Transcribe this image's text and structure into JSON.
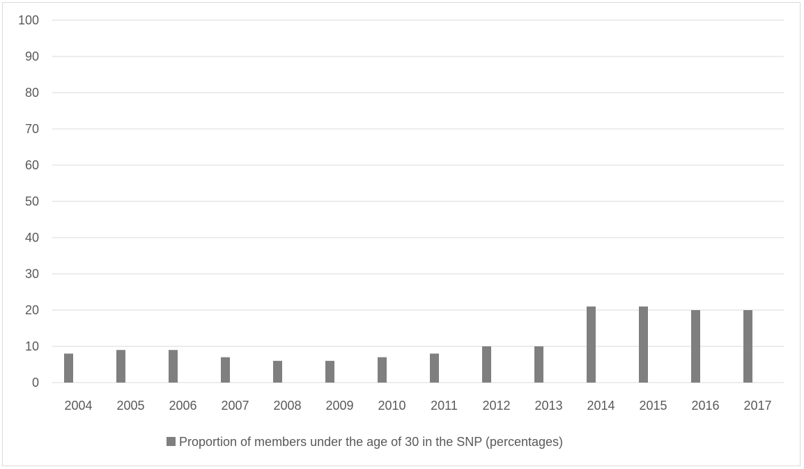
{
  "chart_data": {
    "type": "bar",
    "categories": [
      "2004",
      "2005",
      "2006",
      "2007",
      "2008",
      "2009",
      "2010",
      "2011",
      "2012",
      "2013",
      "2014",
      "2015",
      "2016",
      "2017"
    ],
    "series": [
      {
        "name": "Proportion of members under the age of 30 in the SNP (percentages)",
        "values": [
          8,
          9,
          9,
          7,
          6,
          6,
          7,
          8,
          10,
          10,
          21,
          21,
          20,
          20
        ],
        "color": "#7f7f7f"
      }
    ],
    "yticks": [
      "0",
      "10",
      "20",
      "30",
      "40",
      "50",
      "60",
      "70",
      "80",
      "90",
      "100"
    ],
    "ylim": [
      0,
      100
    ],
    "grid": true,
    "legend_position": "bottom",
    "colors": {
      "gridline": "#d9d9d9",
      "text": "#595959",
      "bar": "#7f7f7f"
    }
  }
}
